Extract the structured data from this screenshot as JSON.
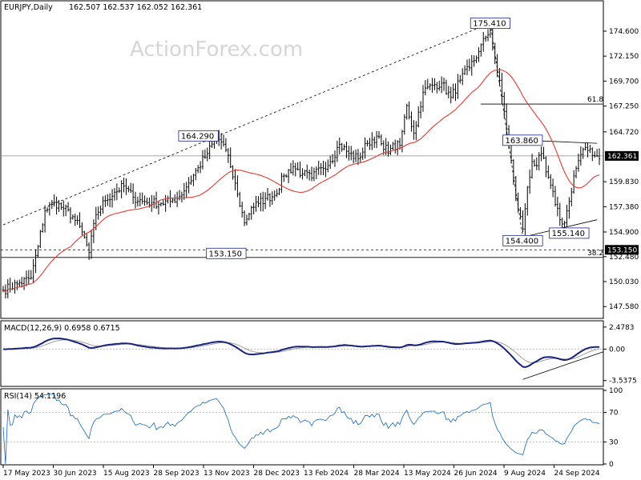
{
  "header": {
    "symbol_text": "EURJPY,Daily",
    "ohlc_text": "162.507 162.537 162.052 162.361"
  },
  "watermark": "ActionForex.com",
  "chart_data": [
    {
      "type": "ohlc",
      "panel": "price",
      "ylim": [
        146.5,
        177.5
      ],
      "y_ticks": [
        "174.600",
        "172.150",
        "169.700",
        "167.250",
        "164.720",
        "159.830",
        "157.380",
        "154.900",
        "152.480",
        "150.030",
        "147.580"
      ],
      "y_tick_values": [
        174.6,
        172.15,
        169.7,
        167.25,
        164.72,
        159.83,
        157.38,
        154.9,
        152.48,
        150.03,
        147.58
      ],
      "current_price": "162.361",
      "current_price_value": 162.361,
      "support_tag": "153.150",
      "support_value": 153.15,
      "fib_levels": [
        {
          "label": "61.8",
          "value": 167.45
        },
        {
          "label": "38.2",
          "value": 152.4
        }
      ],
      "annotations": [
        {
          "text": "175.410",
          "x_index": 210,
          "value": 175.41
        },
        {
          "text": "164.290",
          "x_index": 92,
          "value": 164.29
        },
        {
          "text": "153.150",
          "x_index": 104,
          "value": 153.15
        },
        {
          "text": "163.860",
          "x_index": 229,
          "value": 163.86
        },
        {
          "text": "154.400",
          "x_index": 224,
          "value": 154.4
        },
        {
          "text": "155.140",
          "x_index": 244,
          "value": 155.14
        }
      ],
      "series_anchor_closes": [
        [
          0,
          149.2
        ],
        [
          6,
          149.8
        ],
        [
          12,
          150.4
        ],
        [
          15,
          153.5
        ],
        [
          18,
          157.0
        ],
        [
          22,
          157.8
        ],
        [
          26,
          157.2
        ],
        [
          30,
          156.4
        ],
        [
          34,
          154.9
        ],
        [
          37,
          152.9
        ],
        [
          40,
          156.6
        ],
        [
          44,
          158.0
        ],
        [
          48,
          158.8
        ],
        [
          52,
          159.4
        ],
        [
          56,
          158.3
        ],
        [
          60,
          157.9
        ],
        [
          64,
          157.8
        ],
        [
          68,
          157.7
        ],
        [
          72,
          157.9
        ],
        [
          76,
          158.4
        ],
        [
          80,
          159.7
        ],
        [
          84,
          161.2
        ],
        [
          88,
          162.6
        ],
        [
          92,
          164.2
        ],
        [
          95,
          163.5
        ],
        [
          98,
          161.3
        ],
        [
          101,
          158.6
        ],
        [
          104,
          155.8
        ],
        [
          107,
          157.3
        ],
        [
          110,
          157.7
        ],
        [
          113,
          158.2
        ],
        [
          117,
          158.5
        ],
        [
          121,
          160.4
        ],
        [
          125,
          161.3
        ],
        [
          129,
          160.6
        ],
        [
          133,
          160.2
        ],
        [
          137,
          161.2
        ],
        [
          141,
          161.8
        ],
        [
          145,
          163.5
        ],
        [
          149,
          162.6
        ],
        [
          153,
          162.1
        ],
        [
          157,
          163.6
        ],
        [
          161,
          164.3
        ],
        [
          164,
          163.0
        ],
        [
          167,
          163.1
        ],
        [
          171,
          163.4
        ],
        [
          174,
          167.3
        ],
        [
          177,
          164.6
        ],
        [
          181,
          168.6
        ],
        [
          185,
          169.3
        ],
        [
          189,
          169.5
        ],
        [
          193,
          168.1
        ],
        [
          197,
          169.8
        ],
        [
          201,
          171.0
        ],
        [
          205,
          172.6
        ],
        [
          208,
          174.0
        ],
        [
          210,
          174.7
        ],
        [
          212,
          171.9
        ],
        [
          215,
          168.2
        ],
        [
          218,
          163.6
        ],
        [
          221,
          158.2
        ],
        [
          224,
          155.2
        ],
        [
          226,
          159.3
        ],
        [
          228,
          161.8
        ],
        [
          230,
          161.4
        ],
        [
          232,
          162.6
        ],
        [
          234,
          160.8
        ],
        [
          236,
          159.5
        ],
        [
          238,
          157.6
        ],
        [
          240,
          156.1
        ],
        [
          242,
          155.8
        ],
        [
          244,
          157.9
        ],
        [
          246,
          160.4
        ],
        [
          248,
          161.9
        ],
        [
          250,
          163.0
        ],
        [
          252,
          162.9
        ],
        [
          254,
          162.4
        ],
        [
          256,
          162.36
        ]
      ],
      "bar_count": 258,
      "moving_average": {
        "color": "#e53935",
        "period": 55
      }
    },
    {
      "type": "line",
      "panel": "macd",
      "label": "MACD(12,26,9) 0.6958 0.6715",
      "ylim": [
        -4.1,
        3.0
      ],
      "y_ticks": [
        "2.4783",
        "0.00",
        "-3.5375"
      ],
      "y_tick_values": [
        2.4783,
        0.0,
        -3.5375
      ],
      "current_tag": "0.6958",
      "series_colors": {
        "macd": "#1a237e",
        "signal": "#9e9e9e"
      }
    },
    {
      "type": "line",
      "panel": "rsi",
      "label": "RSI(14) 54.1196",
      "ylim": [
        0,
        100
      ],
      "y_ticks": [
        "100",
        "70",
        "30",
        "0"
      ],
      "y_tick_values": [
        100,
        70,
        30,
        0
      ],
      "series_color": "#1565c0"
    }
  ],
  "x_ticks": [
    "17 May 2023",
    "30 Jun 2023",
    "15 Aug 2023",
    "28 Sep 2023",
    "13 Nov 2023",
    "28 Dec 2023",
    "13 Feb 2024",
    "28 Mar 2024",
    "13 May 2024",
    "26 Jun 2024",
    "9 Aug 2024",
    "24 Sep 2024"
  ],
  "colors": {
    "bars": "#000000",
    "ma": "#e53935",
    "macd": "#1a237e",
    "signal": "#9e9e9e",
    "rsi": "#1565c0",
    "price_tag_bg": "#000000",
    "tag_text": "#ffffff",
    "current_price_line": "#888888"
  }
}
